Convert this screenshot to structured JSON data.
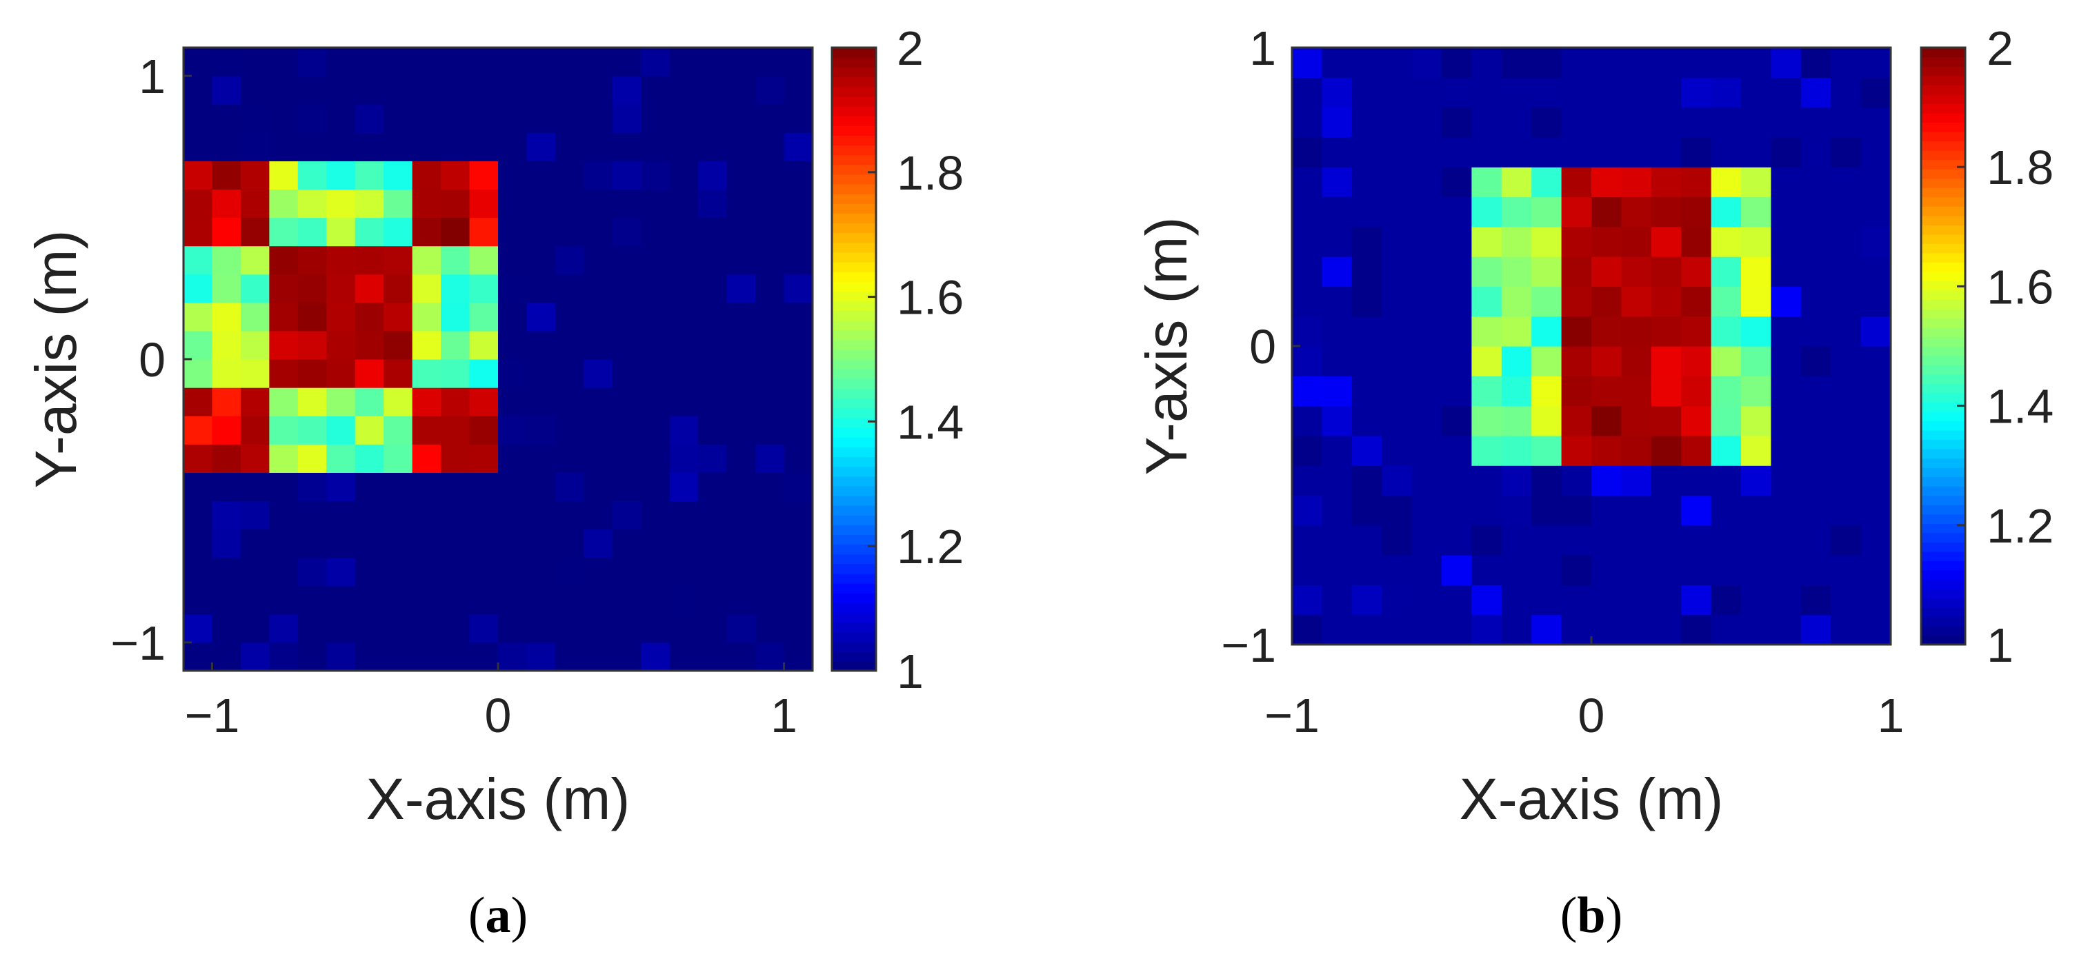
{
  "chart_data": [
    {
      "id": "a",
      "type": "heatmap",
      "subplot_label": "a",
      "xlabel": "X-axis (m)",
      "ylabel": "Y-axis (m)",
      "xlim": [
        -1.1,
        1.1
      ],
      "ylim": [
        -1.1,
        1.1
      ],
      "xticks": [
        -1,
        0,
        1
      ],
      "yticks": [
        -1,
        0,
        1
      ],
      "grid": false,
      "colormap": "jet",
      "clim": [
        1,
        2
      ],
      "colorbar_ticks": [
        "1",
        "1.2",
        "1.4",
        "1.6",
        "1.8",
        "2"
      ],
      "cell_size": 0.1,
      "background_value": 1.0,
      "regions": [
        {
          "name": "outer-square",
          "x": [
            -1.1,
            0.0
          ],
          "y": [
            -0.4,
            0.7
          ],
          "value": 1.5
        },
        {
          "name": "inner-square",
          "x": [
            -0.8,
            -0.3
          ],
          "y": [
            -0.15,
            0.4
          ],
          "value": 2.0
        },
        {
          "name": "corner-top-left",
          "x": [
            -1.1,
            -0.8
          ],
          "y": [
            0.4,
            0.7
          ],
          "value": 1.95
        },
        {
          "name": "corner-top-right",
          "x": [
            -0.3,
            0.0
          ],
          "y": [
            0.4,
            0.7
          ],
          "value": 1.95
        },
        {
          "name": "corner-bottom-left",
          "x": [
            -1.1,
            -0.8
          ],
          "y": [
            -0.4,
            -0.15
          ],
          "value": 1.95
        },
        {
          "name": "corner-bottom-right",
          "x": [
            -0.3,
            0.0
          ],
          "y": [
            -0.4,
            -0.15
          ],
          "value": 1.95
        }
      ]
    },
    {
      "id": "b",
      "type": "heatmap",
      "subplot_label": "b",
      "xlabel": "X-axis (m)",
      "ylabel": "Y-axis (m)",
      "xlim": [
        -1.0,
        1.0
      ],
      "ylim": [
        -1.0,
        1.0
      ],
      "xticks": [
        -1,
        0,
        1
      ],
      "yticks": [
        -1,
        0,
        1
      ],
      "grid": false,
      "colormap": "jet",
      "clim": [
        1,
        2
      ],
      "colorbar_ticks": [
        "1",
        "1.2",
        "1.4",
        "1.6",
        "1.8",
        "2"
      ],
      "cell_size": 0.1,
      "background_value": 1.03,
      "regions": [
        {
          "name": "left-band",
          "x": [
            -0.4,
            -0.1
          ],
          "y": [
            -0.4,
            0.65
          ],
          "value": 1.5
        },
        {
          "name": "center-band",
          "x": [
            -0.1,
            0.4
          ],
          "y": [
            -0.35,
            0.65
          ],
          "value": 2.0
        },
        {
          "name": "right-band",
          "x": [
            0.4,
            0.65
          ],
          "y": [
            -0.4,
            0.65
          ],
          "value": 1.5
        }
      ]
    }
  ]
}
